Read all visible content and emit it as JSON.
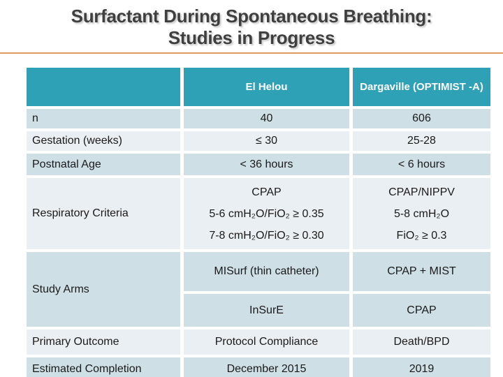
{
  "slide": {
    "title_line1": "Surfactant During Spontaneous Breathing:",
    "title_line2": "Studies in Progress"
  },
  "colors": {
    "header_teal": "#2fa1b6",
    "row_blue": "#cedfe6",
    "row_pale": "#e9eff2",
    "accent_line_orange": "#dd9a5c",
    "title_text": "#3f3f3f"
  },
  "table": {
    "columns": {
      "label": "",
      "study1": "El Helou",
      "study2": "Dargaville (OPTIMIST -A)"
    },
    "rows": {
      "n": {
        "label": "n",
        "study1": "40",
        "study2": "606"
      },
      "gestation": {
        "label": "Gestation (weeks)",
        "study1": "≤ 30",
        "study2": "25-28"
      },
      "postnatal": {
        "label": "Postnatal Age",
        "study1": "< 36 hours",
        "study2": "< 6 hours"
      },
      "respiratory": {
        "label": "Respiratory Criteria",
        "study1_lines": [
          "CPAP",
          "5-6 cmH₂O/FiO₂ ≥ 0.35",
          "7-8 cmH₂O/FiO₂ ≥ 0.30"
        ],
        "study2_lines": [
          "CPAP/NIPPV",
          "5-8 cmH₂O",
          "FiO₂ ≥ 0.3"
        ]
      },
      "study_arms": {
        "label": "Study Arms",
        "arm1": {
          "study1": "MISurf (thin catheter)",
          "study2": "CPAP + MIST"
        },
        "arm2": {
          "study1": "InSurE",
          "study2": "CPAP"
        }
      },
      "primary_outcome": {
        "label": "Primary Outcome",
        "study1": "Protocol Compliance",
        "study2": "Death/BPD"
      },
      "estimated_completion": {
        "label": "Estimated Completion",
        "study1": "December 2015",
        "study2": "2019"
      }
    }
  }
}
